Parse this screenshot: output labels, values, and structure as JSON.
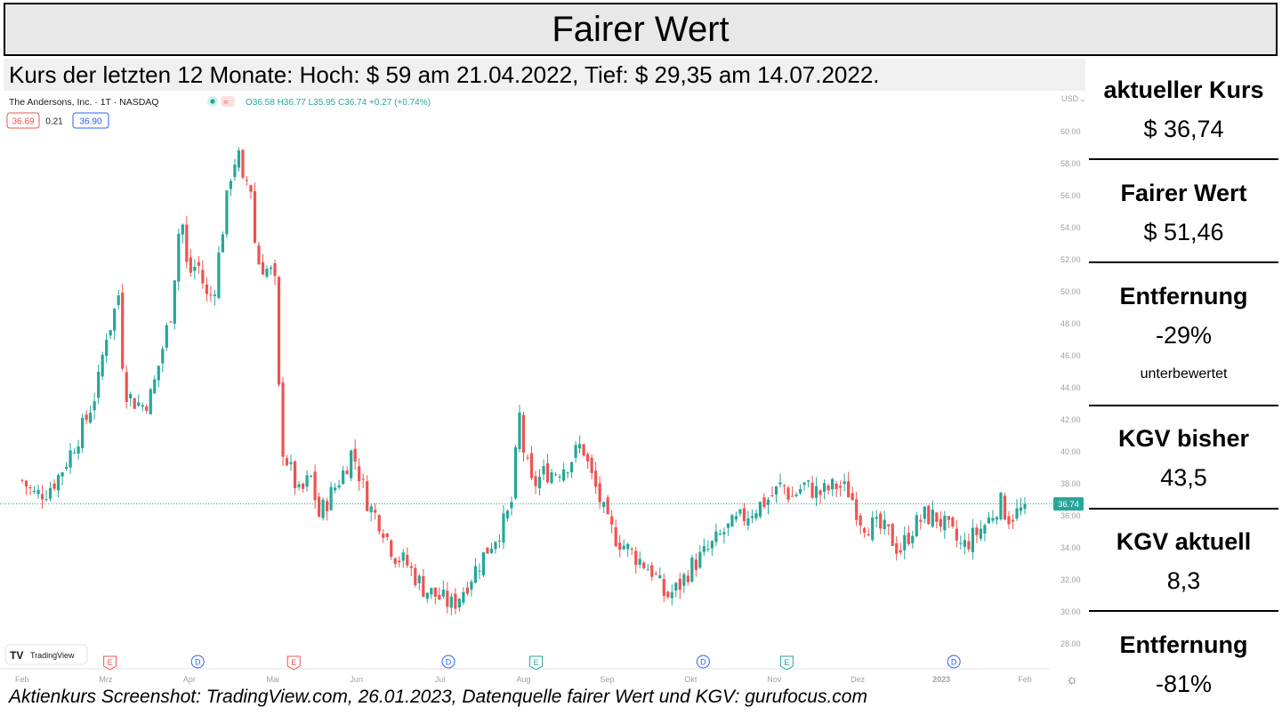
{
  "title": "Fairer Wert",
  "subheader": "Kurs der letzten 12 Monate: Hoch: $ 59 am 21.04.2022, Tief: $ 29,35 am 14.07.2022.",
  "footer": "Aktienkurs Screenshot: TradingView.com, 26.01.2023, Datenquelle fairer Wert und KGV: gurufocus.com",
  "metrics": [
    {
      "label": "aktueller Kurs",
      "value": "$ 36,74"
    },
    {
      "label": "Fairer Wert",
      "value": "$ 51,46"
    },
    {
      "label": "Entfernung",
      "value": "-29%",
      "note": "unterbewertet"
    },
    {
      "label": "KGV bisher",
      "value": "43,5"
    },
    {
      "label": "KGV aktuell",
      "value": "8,3"
    },
    {
      "label": "Entfernung",
      "value": "-81%"
    }
  ],
  "tv": {
    "symbol_line": "The Andersons, Inc. · 1T · NASDAQ",
    "ohlc": "O36.58 H36.77 L35.95 C36.74 +0.27 (+0.74%)",
    "bid": "36.69",
    "spread": "0.21",
    "ask": "36.90",
    "currency": "USD",
    "last_price_tag": "36.74",
    "logo_text": "TradingView",
    "up_color": "#26a69a",
    "down_color": "#ef5350",
    "events": [
      {
        "type": "E",
        "month_index": 1.05
      },
      {
        "type": "D",
        "month_index": 2.1
      },
      {
        "type": "E",
        "month_index": 3.25
      },
      {
        "type": "D",
        "month_index": 5.1
      },
      {
        "type": "E",
        "month_index": 6.15
      },
      {
        "type": "D",
        "month_index": 8.15
      },
      {
        "type": "E",
        "month_index": 9.15
      },
      {
        "type": "D",
        "month_index": 11.15
      }
    ]
  },
  "chart_data": {
    "type": "candlestick",
    "x_ticks": [
      "Feb",
      "Mrz",
      "Apr",
      "Mai",
      "Jun",
      "Jul",
      "Aug",
      "Sep",
      "Okt",
      "Nov",
      "Dez",
      "2023",
      "Feb"
    ],
    "y_ticks": [
      "60.00",
      "58.00",
      "56.00",
      "54.00",
      "52.00",
      "50.00",
      "48.00",
      "46.00",
      "44.00",
      "42.00",
      "40.00",
      "38.00",
      "36.00",
      "34.00",
      "32.00",
      "30.00",
      "28.00"
    ],
    "ylim": [
      27,
      61.5
    ],
    "last_close": 36.74,
    "close_path": [
      [
        0.0,
        38.2
      ],
      [
        0.15,
        37.3
      ],
      [
        0.3,
        37.6
      ],
      [
        0.45,
        38.6
      ],
      [
        0.6,
        40.2
      ],
      [
        0.75,
        41.8
      ],
      [
        0.9,
        44.0
      ],
      [
        1.0,
        47.3
      ],
      [
        1.08,
        48.2
      ],
      [
        1.15,
        50.0
      ],
      [
        1.22,
        44.0
      ],
      [
        1.32,
        43.2
      ],
      [
        1.45,
        42.9
      ],
      [
        1.55,
        43.6
      ],
      [
        1.65,
        45.8
      ],
      [
        1.78,
        48.8
      ],
      [
        1.9,
        55.2
      ],
      [
        1.98,
        51.0
      ],
      [
        2.1,
        51.8
      ],
      [
        2.22,
        49.4
      ],
      [
        2.3,
        50.3
      ],
      [
        2.4,
        54.0
      ],
      [
        2.5,
        57.5
      ],
      [
        2.58,
        58.8
      ],
      [
        2.65,
        56.2
      ],
      [
        2.72,
        57.6
      ],
      [
        2.8,
        52.0
      ],
      [
        2.9,
        51.5
      ],
      [
        3.02,
        51.0
      ],
      [
        3.07,
        44.0
      ],
      [
        3.1,
        40.5
      ],
      [
        3.2,
        39.0
      ],
      [
        3.32,
        37.2
      ],
      [
        3.45,
        38.5
      ],
      [
        3.55,
        36.0
      ],
      [
        3.7,
        37.4
      ],
      [
        3.85,
        38.8
      ],
      [
        3.95,
        40.1
      ],
      [
        4.05,
        38.3
      ],
      [
        4.15,
        36.6
      ],
      [
        4.3,
        35.5
      ],
      [
        4.45,
        33.6
      ],
      [
        4.6,
        33.0
      ],
      [
        4.8,
        31.5
      ],
      [
        4.95,
        31.0
      ],
      [
        5.15,
        30.4
      ],
      [
        5.28,
        31.4
      ],
      [
        5.45,
        32.9
      ],
      [
        5.6,
        34.2
      ],
      [
        5.75,
        35.4
      ],
      [
        5.85,
        36.5
      ],
      [
        5.95,
        42.3
      ],
      [
        6.0,
        40.1
      ],
      [
        6.1,
        37.8
      ],
      [
        6.25,
        38.7
      ],
      [
        6.4,
        38.8
      ],
      [
        6.55,
        39.4
      ],
      [
        6.7,
        40.5
      ],
      [
        6.8,
        38.6
      ],
      [
        6.9,
        37.2
      ],
      [
        7.0,
        35.5
      ],
      [
        7.1,
        34.7
      ],
      [
        7.25,
        33.9
      ],
      [
        7.4,
        33.2
      ],
      [
        7.55,
        32.5
      ],
      [
        7.7,
        30.9
      ],
      [
        7.85,
        31.5
      ],
      [
        8.0,
        32.8
      ],
      [
        8.2,
        33.8
      ],
      [
        8.4,
        35.0
      ],
      [
        8.6,
        35.8
      ],
      [
        8.8,
        36.6
      ],
      [
        8.95,
        37.1
      ],
      [
        9.1,
        38.0
      ],
      [
        9.2,
        37.1
      ],
      [
        9.35,
        37.9
      ],
      [
        9.55,
        37.4
      ],
      [
        9.75,
        37.9
      ],
      [
        9.9,
        37.5
      ],
      [
        10.05,
        35.6
      ],
      [
        10.2,
        35.3
      ],
      [
        10.35,
        35.0
      ],
      [
        10.5,
        33.8
      ],
      [
        10.65,
        35.2
      ],
      [
        10.8,
        36.0
      ],
      [
        10.95,
        35.9
      ],
      [
        11.1,
        35.0
      ],
      [
        11.25,
        34.0
      ],
      [
        11.4,
        34.8
      ],
      [
        11.55,
        35.6
      ],
      [
        11.7,
        36.9
      ],
      [
        11.8,
        35.9
      ],
      [
        11.95,
        36.3
      ],
      [
        12.0,
        36.74
      ]
    ]
  }
}
